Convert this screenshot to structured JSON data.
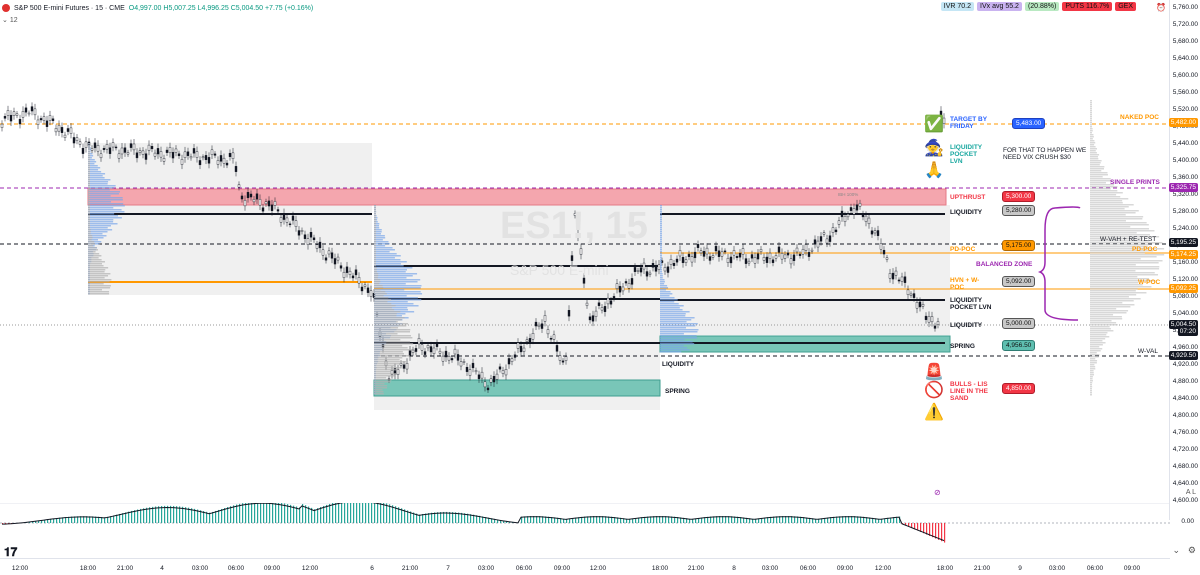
{
  "header": {
    "symbol": "S&P 500 E-mini Futures · 15 · CME",
    "ohlc": "O4,997.00 H5,007.25 L4,996.25 C5,004.50 +7.75 (+0.16%)",
    "indicator_count": "12"
  },
  "top_badges": [
    {
      "text": "IVR 70.2",
      "color": "#c5e6f5"
    },
    {
      "text": "IVx avg 55.2",
      "color": "#c9b3f0"
    },
    {
      "text": "(20.88%)",
      "color": "#b9e9c2"
    },
    {
      "text": "PUTS 116.7%",
      "color": "#f23645"
    },
    {
      "text": "GEX",
      "color": "#f23645"
    }
  ],
  "watermark": {
    "ticker": "ES1!, 15",
    "name": "S&P 500 E-mini"
  },
  "y_axis": [
    "5,760.00",
    "5,720.00",
    "5,680.00",
    "5,640.00",
    "5,600.00",
    "5,560.00",
    "5,520.00",
    "5,480.00",
    "5,440.00",
    "5,400.00",
    "5,360.00",
    "5,320.00",
    "5,280.00",
    "5,240.00",
    "5,200.00",
    "5,160.00",
    "5,120.00",
    "5,080.00",
    "5,040.00",
    "5,000.00",
    "4,960.00",
    "4,920.00",
    "4,880.00",
    "4,840.00",
    "4,800.00",
    "4,760.00",
    "4,720.00",
    "4,680.00",
    "4,640.00",
    "4,600.00"
  ],
  "price_tags": [
    {
      "text": "5,482.00",
      "color": "#ff9800"
    },
    {
      "text": "5,325.75",
      "color": "#9c27b0"
    },
    {
      "text": "5,195.25",
      "color": "#131722"
    },
    {
      "text": "5,174.25",
      "color": "#ff9800"
    },
    {
      "text": "5,092.25",
      "color": "#ff9800"
    },
    {
      "text": "5,004.50",
      "color": "#131722"
    },
    {
      "text": "07:20",
      "color": "#131722"
    },
    {
      "text": "4,929.50",
      "color": "#131722"
    }
  ],
  "x_axis": [
    "12:00",
    "18:00",
    "21:00",
    "4",
    "03:00",
    "06:00",
    "09:00",
    "12:00",
    "6",
    "21:00",
    "7",
    "03:00",
    "06:00",
    "09:00",
    "12:00",
    "18:00",
    "21:00",
    "8",
    "03:00",
    "06:00",
    "09:00",
    "12:00",
    "18:00",
    "21:00",
    "9",
    "03:00",
    "06:00",
    "09:00"
  ],
  "annotations": {
    "naked_poc": "NAKED POC",
    "single_prints": "SINGLE PRINTS",
    "w_vah": "W-VAH + RE-TEST",
    "pd_poc_right": "PD-POC",
    "w_poc_right": "W-POC",
    "w_val": "W-VAL",
    "target": "TARGET BY FRIDAY",
    "target_price": "5,483.00",
    "liq_pocket_lvn": "LIQUIDITY POCKET LVN",
    "vix_note": "FOR THAT TO HAPPEN WE NEED VIX CRUSH $30",
    "upthrust": "UPTHRUST",
    "upthrust_price": "5,300.00",
    "liquidity_top": "LIQUIDITY",
    "liquidity_top_price": "5,280.00",
    "pd_poc": "PD-POC",
    "pd_poc_price": "5,175.00",
    "balanced_zone": "BALANCED ZONE",
    "hvn_wpoc": "HVN + W-POC",
    "hvn_price": "5,092.00",
    "liq_pocket_lvn2": "LIQUIDITY POCKET LVN",
    "liquidity_mid": "LIQUIDITY",
    "liquidity_mid_price": "5,000.00",
    "spring": "SPRING",
    "spring_price": "4,956.50",
    "liquidity_left": "LIQUIDITY",
    "spring_left": "SPRING",
    "bulls_lis": "BULLS - LIS LINE IN THE SAND",
    "bulls_price": "4,850.00",
    "oscillator_zero": "0.00",
    "ibh_note": "IBH 100%",
    "axis_a": "A",
    "axis_l": "L"
  },
  "icons": [
    "check-icon",
    "wizard-icon",
    "prayer-hands-icon",
    "alarm-icon",
    "no-entry-icon",
    "warning-icon",
    "settings-icon",
    "tradingview-logo-icon"
  ]
}
